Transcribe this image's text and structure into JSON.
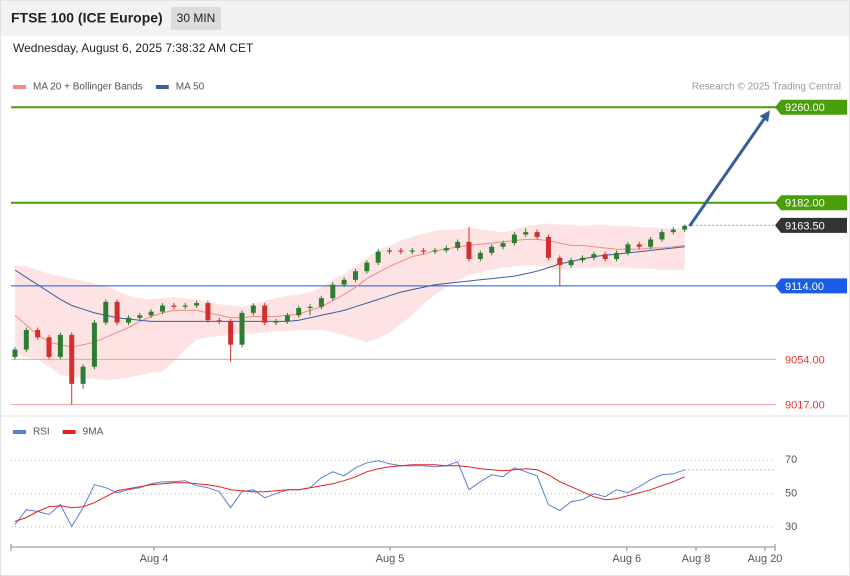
{
  "header": {
    "title": "FTSE 100 (ICE Europe)",
    "timeframe": "30 MIN",
    "date": "Wednesday, August 6, 2025 7:38:32 AM CET"
  },
  "chart_data": [
    {
      "type": "candlestick",
      "source": "Research © 2025 Trading Central",
      "xlim": [
        -0.35,
        66.96
      ],
      "ylim": [
        9011,
        9270
      ],
      "up_color": "#2e7d32",
      "down_color": "#d32f2f",
      "band_color": "#fde3e3",
      "open": [
        9056,
        9062,
        9078,
        9072,
        9056,
        9074,
        9034,
        9048,
        9084,
        9101,
        9084,
        9088,
        9090,
        9093,
        9098,
        9097,
        9098,
        9100,
        9086,
        9085,
        9066,
        9092,
        9098,
        9084,
        9085,
        9090,
        9096,
        9097,
        9104,
        9115,
        9119,
        9126,
        9133,
        9142,
        9143,
        9142,
        9143,
        9142,
        9143,
        9145,
        9150,
        9136,
        9141,
        9146,
        9149,
        9156,
        9158,
        9154,
        9137,
        9131,
        9135,
        9137,
        9140,
        9136,
        9141,
        9148,
        9146,
        9152,
        9158,
        9160
      ],
      "high": [
        9064,
        9080,
        9080,
        9074,
        9076,
        9076,
        9050,
        9086,
        9103,
        9103,
        9090,
        9092,
        9095,
        9100,
        9100,
        9100,
        9102,
        9102,
        9088,
        9087,
        9094,
        9100,
        9100,
        9087,
        9092,
        9098,
        9099,
        9106,
        9117,
        9121,
        9128,
        9135,
        9144,
        9145,
        9145,
        9145,
        9145,
        9145,
        9147,
        9152,
        9162,
        9143,
        9148,
        9151,
        9158,
        9161,
        9160,
        9156,
        9139,
        9137,
        9139,
        9142,
        9142,
        9143,
        9150,
        9150,
        9154,
        9160,
        9162,
        9164
      ],
      "low": [
        9054,
        9060,
        9070,
        9054,
        9054,
        9017,
        9030,
        9046,
        9082,
        9082,
        9082,
        9086,
        9088,
        9091,
        9095,
        9095,
        9096,
        9084,
        9083,
        9052,
        9064,
        9090,
        9082,
        9082,
        9083,
        9088,
        9090,
        9095,
        9102,
        9113,
        9117,
        9124,
        9131,
        9140,
        9140,
        9140,
        9140,
        9140,
        9141,
        9143,
        9134,
        9134,
        9139,
        9144,
        9147,
        9154,
        9152,
        9135,
        9114,
        9129,
        9133,
        9135,
        9134,
        9134,
        9139,
        9144,
        9144,
        9150,
        9156,
        9158
      ],
      "close": [
        9062,
        9078,
        9072,
        9056,
        9074,
        9034,
        9048,
        9084,
        9101,
        9084,
        9088,
        9090,
        9093,
        9098,
        9097,
        9098,
        9100,
        9086,
        9085,
        9066,
        9092,
        9098,
        9084,
        9085,
        9090,
        9096,
        9097,
        9104,
        9115,
        9119,
        9126,
        9133,
        9142,
        9143,
        9142,
        9143,
        9142,
        9143,
        9145,
        9150,
        9136,
        9141,
        9146,
        9149,
        9156,
        9158,
        9154,
        9137,
        9131,
        9135,
        9137,
        9140,
        9136,
        9141,
        9148,
        9146,
        9152,
        9158,
        9160,
        9163
      ],
      "series": [
        {
          "name": "MA 20 + Bollinger Bands",
          "color": "#f28b82",
          "values": [
            9090,
            9082,
            9074,
            9068,
            9066,
            9064,
            9066,
            9068,
            9072,
            9076,
            9080,
            9085,
            9089,
            9092,
            9094,
            9094,
            9094,
            9092,
            9090,
            9088,
            9088,
            9089,
            9089,
            9089,
            9090,
            9091,
            9094,
            9097,
            9102,
            9107,
            9113,
            9120,
            9125,
            9130,
            9134,
            9138,
            9140,
            9143,
            9144,
            9146,
            9147,
            9148,
            9149,
            9150,
            9151,
            9152,
            9152,
            9151,
            9149,
            9147,
            9147,
            9146,
            9145,
            9144,
            9144,
            9144,
            9145,
            9145,
            9146,
            9147
          ],
          "upper": [
            9131,
            9130,
            9127,
            9124,
            9122,
            9120,
            9118,
            9116,
            9114,
            9110,
            9106,
            9104,
            9103,
            9104,
            9105,
            9104,
            9103,
            9101,
            9099,
            9098,
            9097,
            9099,
            9102,
            9104,
            9106,
            9107,
            9109,
            9113,
            9119,
            9124,
            9130,
            9137,
            9143,
            9147,
            9151,
            9154,
            9157,
            9159,
            9160,
            9160,
            9162,
            9160,
            9159,
            9158,
            9160,
            9163,
            9164,
            9165,
            9164,
            9164,
            9163,
            9164,
            9164,
            9163,
            9163,
            9162,
            9162,
            9161,
            9161,
            9161
          ],
          "lower": [
            9058,
            9056,
            9054,
            9048,
            9041,
            9040,
            9039,
            9038,
            9037,
            9038,
            9039,
            9041,
            9043,
            9044,
            9052,
            9062,
            9070,
            9072,
            9073,
            9074,
            9075,
            9075,
            9076,
            9077,
            9077,
            9078,
            9078,
            9078,
            9076,
            9074,
            9071,
            9068,
            9071,
            9076,
            9083,
            9090,
            9099,
            9107,
            9113,
            9118,
            9123,
            9125,
            9127,
            9129,
            9130,
            9131,
            9131,
            9129,
            9127,
            9128,
            9129,
            9129,
            9129,
            9129,
            9129,
            9128,
            9128,
            9127,
            9127,
            9127
          ]
        },
        {
          "name": "MA 50",
          "color": "#3a5fa0",
          "values": [
            9127,
            9121,
            9115,
            9109,
            9103,
            9098,
            9095,
            9092,
            9090,
            9088,
            9087,
            9086,
            9085,
            9085,
            9085,
            9085,
            9085,
            9085,
            9085,
            9085,
            9085,
            9085,
            9085,
            9085,
            9085,
            9086,
            9088,
            9090,
            9092,
            9094,
            9097,
            9100,
            9103,
            9106,
            9109,
            9111,
            9113,
            9115,
            9116,
            9117,
            9118,
            9119,
            9120,
            9121,
            9122,
            9124,
            9126,
            9129,
            9132,
            9134,
            9136,
            9138,
            9139,
            9140,
            9141,
            9142,
            9143,
            9144,
            9145,
            9146
          ]
        }
      ],
      "levels": [
        {
          "value": 9260,
          "label": "9260.00",
          "color": "#4a9e0a",
          "line_color": "#4a9e0a",
          "style": "box"
        },
        {
          "value": 9182,
          "label": "9182.00",
          "color": "#4a9e0a",
          "line_color": "#4a9e0a",
          "style": "box"
        },
        {
          "value": 9163.5,
          "label": "9163.50",
          "color": "#333333",
          "line_color": "#555555",
          "style": "box"
        },
        {
          "value": 9114,
          "label": "9114.00",
          "color": "#1a5ce6",
          "line_color": "#1a5ce6",
          "style": "box"
        },
        {
          "value": 9054,
          "label": "9054.00",
          "color": "#e53935",
          "line_color": "#f4a0a0",
          "style": "text"
        },
        {
          "value": 9017,
          "label": "9017.00",
          "color": "#e53935",
          "line_color": "#f4a0a0",
          "style": "text"
        }
      ],
      "arrow_color": "#3460a0"
    },
    {
      "type": "line",
      "xlim": [
        -0.35,
        66.96
      ],
      "ylim": [
        18,
        90
      ],
      "yticks": [
        30,
        50,
        70
      ],
      "xticks": [
        {
          "value": 12.25,
          "label": "Aug 4"
        },
        {
          "value": 33.04,
          "label": "Aug 5"
        },
        {
          "value": 53.9,
          "label": "Aug 6"
        },
        {
          "value": 60,
          "label": "Aug 8"
        },
        {
          "value": 66.08,
          "label": "Aug 20"
        }
      ],
      "series": [
        {
          "name": "RSI",
          "color": "#5b7fd6",
          "values": [
            31.5,
            40.4,
            39.3,
            37.5,
            43.4,
            30.3,
            41.6,
            55.4,
            53.6,
            50.6,
            52.4,
            53.6,
            56,
            57.2,
            57.2,
            57.8,
            54.8,
            53.6,
            51.2,
            41.6,
            51.2,
            52.4,
            47.6,
            50,
            52.4,
            52.4,
            53.6,
            59.6,
            63.1,
            60.7,
            65.5,
            68.5,
            69.7,
            67.9,
            66.7,
            66.7,
            66.7,
            66.1,
            66.7,
            69.1,
            52.4,
            57.2,
            61.3,
            60.1,
            65.5,
            63.1,
            60.7,
            43.4,
            39.9,
            45.2,
            46.4,
            50,
            48.2,
            52.4,
            50.6,
            54.2,
            58.4,
            61.3,
            61.9,
            64.3
          ]
        },
        {
          "name": "9MA",
          "color": "#e02020",
          "values": [
            33.3,
            35.7,
            39.3,
            42.2,
            42.8,
            41.6,
            42.2,
            44.6,
            48.2,
            51.8,
            53,
            54.2,
            55.4,
            56,
            56.6,
            56.6,
            56,
            55.4,
            54.2,
            52.4,
            51.8,
            51.2,
            51.2,
            51.8,
            52.4,
            52.4,
            53.6,
            54.8,
            56,
            57.8,
            60.1,
            63.1,
            64.9,
            66.1,
            66.7,
            67.3,
            67.3,
            67.3,
            66.7,
            66.7,
            66.1,
            64.9,
            64.3,
            63.7,
            64.3,
            64.9,
            64.3,
            61.3,
            57.2,
            54.2,
            51.2,
            48.2,
            46.4,
            47,
            48.8,
            50.6,
            52.4,
            54.8,
            57.2,
            60.1
          ]
        }
      ]
    }
  ]
}
